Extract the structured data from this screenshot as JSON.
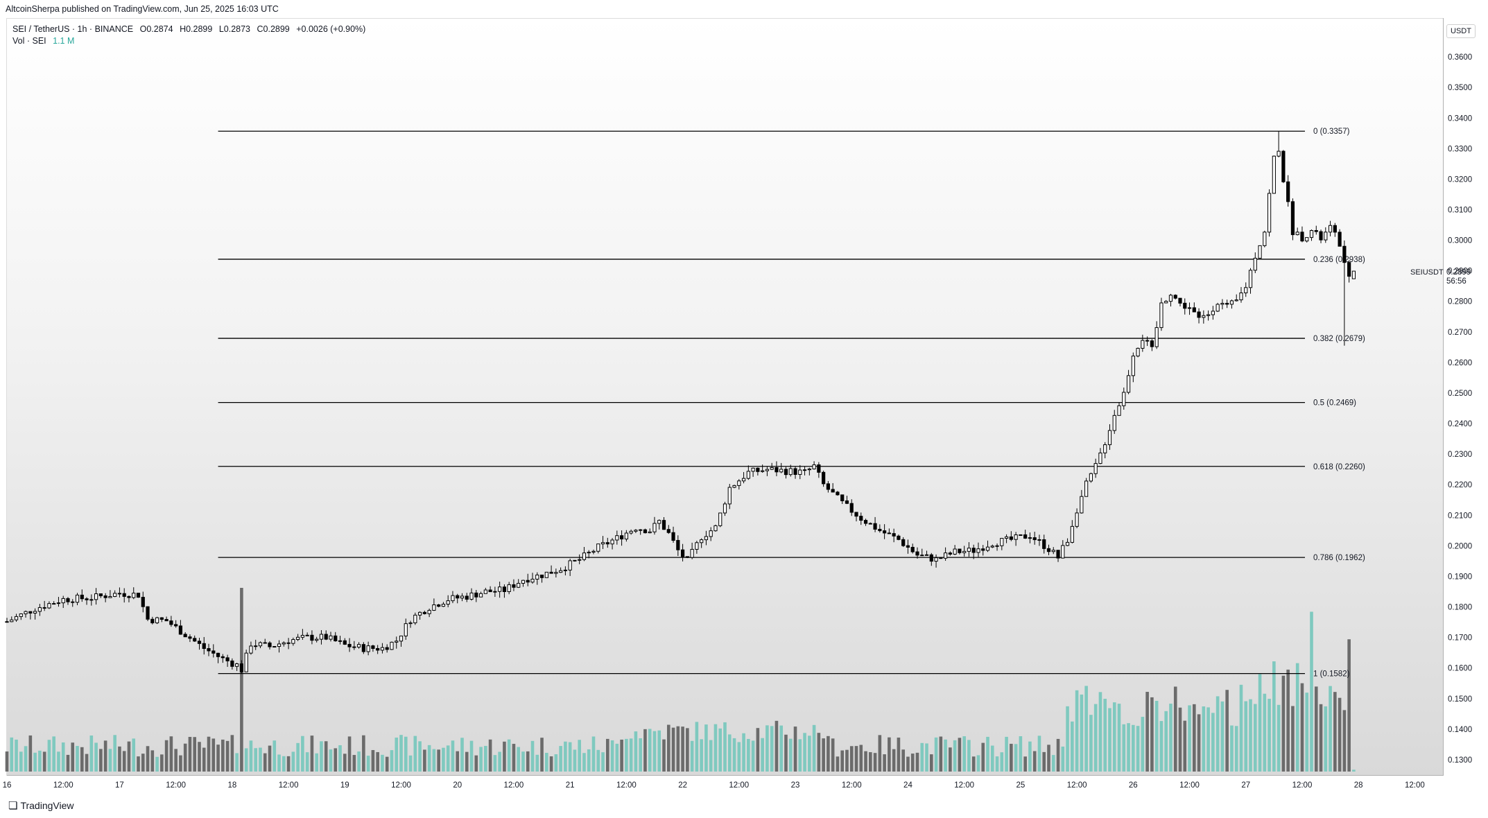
{
  "header": {
    "published": "AltcoinSherpa published on TradingView.com, Jun 25, 2025 16:03 UTC"
  },
  "legend": {
    "symbol": "SEI / TetherUS · 1h · BINANCE",
    "open": "O0.2874",
    "high": "H0.2899",
    "low": "L0.2873",
    "close": "C0.2899",
    "change": "+0.0026 (+0.90%)",
    "volume_label": "Vol · SEI",
    "volume_value": "1.1 M"
  },
  "price_axis": {
    "unit": "USDT",
    "symbol": "SEIUSDT",
    "last_price": "0.2899",
    "countdown": "56:56"
  },
  "footer": {
    "logo_text": "TradingView"
  },
  "colors": {
    "candle_up": "#ffffff",
    "candle_down": "#000000",
    "candle_border": "#000000",
    "volume_up": "#7fc9bf",
    "volume_down": "#6b6b6b",
    "fib_line": "#000000",
    "axis_text": "#131722"
  },
  "chart_data": {
    "type": "candlestick",
    "interval": "1h",
    "y_range": [
      0.125,
      0.3725
    ],
    "y_ticks": [
      "0.3600",
      "0.3500",
      "0.3400",
      "0.3300",
      "0.3200",
      "0.3100",
      "0.3000",
      "0.2900",
      "0.2800",
      "0.2700",
      "0.2600",
      "0.2500",
      "0.2400",
      "0.2300",
      "0.2200",
      "0.2100",
      "0.2000",
      "0.1900",
      "0.1800",
      "0.1700",
      "0.1600",
      "0.1500",
      "0.1400",
      "0.1300"
    ],
    "x_labels": [
      "16",
      "12:00",
      "17",
      "12:00",
      "18",
      "12:00",
      "19",
      "12:00",
      "20",
      "12:00",
      "21",
      "12:00",
      "22",
      "12:00",
      "23",
      "12:00",
      "24",
      "12:00",
      "25",
      "12:00",
      "26",
      "12:00",
      "27",
      "12:00",
      "28",
      "12:00"
    ],
    "x_range_hours": [
      0,
      306
    ],
    "fib_levels": [
      {
        "label": "0 (0.3357)",
        "value": 0.3357
      },
      {
        "label": "0.236 (0.2938)",
        "value": 0.2938
      },
      {
        "label": "0.382 (0.2679)",
        "value": 0.2679
      },
      {
        "label": "0.5 (0.2469)",
        "value": 0.2469
      },
      {
        "label": "0.618 (0.2260)",
        "value": 0.226
      },
      {
        "label": "0.786 (0.1962)",
        "value": 0.1962
      },
      {
        "label": "1 (0.1582)",
        "value": 0.1582
      }
    ],
    "fib_start_hour": 45,
    "close_path": [
      [
        0,
        0.1752
      ],
      [
        6,
        0.1795
      ],
      [
        12,
        0.1825
      ],
      [
        18,
        0.183
      ],
      [
        24,
        0.1845
      ],
      [
        28,
        0.184
      ],
      [
        30,
        0.176
      ],
      [
        34,
        0.1755
      ],
      [
        38,
        0.171
      ],
      [
        42,
        0.1665
      ],
      [
        46,
        0.163
      ],
      [
        49,
        0.161
      ],
      [
        50,
        0.1595
      ],
      [
        52,
        0.168
      ],
      [
        56,
        0.167
      ],
      [
        60,
        0.169
      ],
      [
        64,
        0.17
      ],
      [
        68,
        0.17
      ],
      [
        72,
        0.1675
      ],
      [
        76,
        0.1665
      ],
      [
        80,
        0.1665
      ],
      [
        83,
        0.169
      ],
      [
        86,
        0.176
      ],
      [
        90,
        0.18
      ],
      [
        94,
        0.1825
      ],
      [
        98,
        0.1835
      ],
      [
        102,
        0.185
      ],
      [
        106,
        0.1855
      ],
      [
        110,
        0.189
      ],
      [
        114,
        0.1905
      ],
      [
        118,
        0.1925
      ],
      [
        122,
        0.1955
      ],
      [
        126,
        0.1995
      ],
      [
        130,
        0.2025
      ],
      [
        134,
        0.206
      ],
      [
        137,
        0.205
      ],
      [
        139,
        0.208
      ],
      [
        141,
        0.204
      ],
      [
        143,
        0.1985
      ],
      [
        145,
        0.195
      ],
      [
        148,
        0.203
      ],
      [
        151,
        0.206
      ],
      [
        154,
        0.219
      ],
      [
        158,
        0.224
      ],
      [
        162,
        0.225
      ],
      [
        166,
        0.2245
      ],
      [
        170,
        0.224
      ],
      [
        172,
        0.226
      ],
      [
        174,
        0.22
      ],
      [
        178,
        0.214
      ],
      [
        182,
        0.209
      ],
      [
        186,
        0.205
      ],
      [
        190,
        0.202
      ],
      [
        194,
        0.197
      ],
      [
        198,
        0.1955
      ],
      [
        202,
        0.198
      ],
      [
        206,
        0.1985
      ],
      [
        210,
        0.201
      ],
      [
        214,
        0.202
      ],
      [
        218,
        0.2035
      ],
      [
        222,
        0.199
      ],
      [
        224,
        0.1962
      ],
      [
        226,
        0.202
      ],
      [
        228,
        0.212
      ],
      [
        230,
        0.22
      ],
      [
        232,
        0.226
      ],
      [
        234,
        0.234
      ],
      [
        236,
        0.243
      ],
      [
        238,
        0.25
      ],
      [
        240,
        0.263
      ],
      [
        242,
        0.268
      ],
      [
        244,
        0.264
      ],
      [
        246,
        0.279
      ],
      [
        248,
        0.283
      ],
      [
        250,
        0.279
      ],
      [
        252,
        0.278
      ],
      [
        254,
        0.274
      ],
      [
        256,
        0.276
      ],
      [
        258,
        0.28
      ],
      [
        260,
        0.278
      ],
      [
        262,
        0.28
      ],
      [
        264,
        0.285
      ],
      [
        266,
        0.295
      ],
      [
        268,
        0.303
      ],
      [
        270,
        0.327
      ],
      [
        271,
        0.33
      ],
      [
        272,
        0.32
      ],
      [
        274,
        0.303
      ],
      [
        276,
        0.301
      ],
      [
        278,
        0.303
      ],
      [
        280,
        0.3005
      ],
      [
        282,
        0.304
      ],
      [
        284,
        0.299
      ],
      [
        285,
        0.292
      ],
      [
        286,
        0.287
      ],
      [
        287,
        0.2899
      ]
    ],
    "last_candle": {
      "open": 0.2874,
      "high": 0.2899,
      "low": 0.2873,
      "close": 0.2899
    },
    "swing_high": 0.3357,
    "swing_low": 0.1582,
    "volume_spikes": [
      {
        "hour": 50,
        "relative": 1.0
      },
      {
        "hour": 278,
        "relative": 0.87
      },
      {
        "hour": 286,
        "relative": 0.72
      }
    ]
  }
}
